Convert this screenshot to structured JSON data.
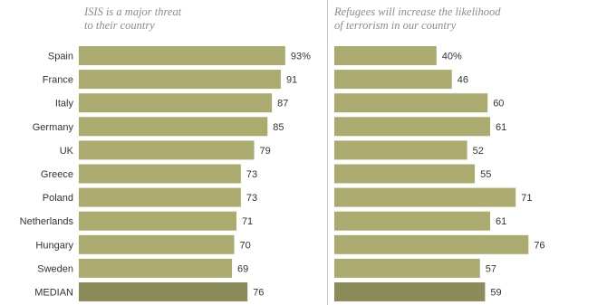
{
  "chart_data": [
    {
      "type": "bar",
      "orientation": "horizontal",
      "subtitle": "ISIS is a major threat\nto their country",
      "categories": [
        "Spain",
        "France",
        "Italy",
        "Germany",
        "UK",
        "Greece",
        "Poland",
        "Netherlands",
        "Hungary",
        "Sweden",
        "MEDIAN"
      ],
      "values": [
        93,
        91,
        87,
        85,
        79,
        73,
        73,
        71,
        70,
        69,
        76
      ],
      "value_labels": [
        "93%",
        "91",
        "87",
        "85",
        "79",
        "73",
        "73",
        "71",
        "70",
        "69",
        "76"
      ],
      "xlim": [
        0,
        100
      ],
      "grid": false,
      "colors": {
        "bar": "#abab6f",
        "median_bar": "#8c8c5b"
      }
    },
    {
      "type": "bar",
      "orientation": "horizontal",
      "subtitle": "Refugees will increase the likelihood\nof terrorism in our country",
      "categories": [
        "Spain",
        "France",
        "Italy",
        "Germany",
        "UK",
        "Greece",
        "Poland",
        "Netherlands",
        "Hungary",
        "Sweden",
        "MEDIAN"
      ],
      "values": [
        40,
        46,
        60,
        61,
        52,
        55,
        71,
        61,
        76,
        57,
        59
      ],
      "value_labels": [
        "40%",
        "46",
        "60",
        "61",
        "52",
        "55",
        "71",
        "61",
        "76",
        "57",
        "59"
      ],
      "xlim": [
        0,
        100
      ],
      "grid": false,
      "colors": {
        "bar": "#abab6f",
        "median_bar": "#8c8c5b"
      }
    }
  ]
}
